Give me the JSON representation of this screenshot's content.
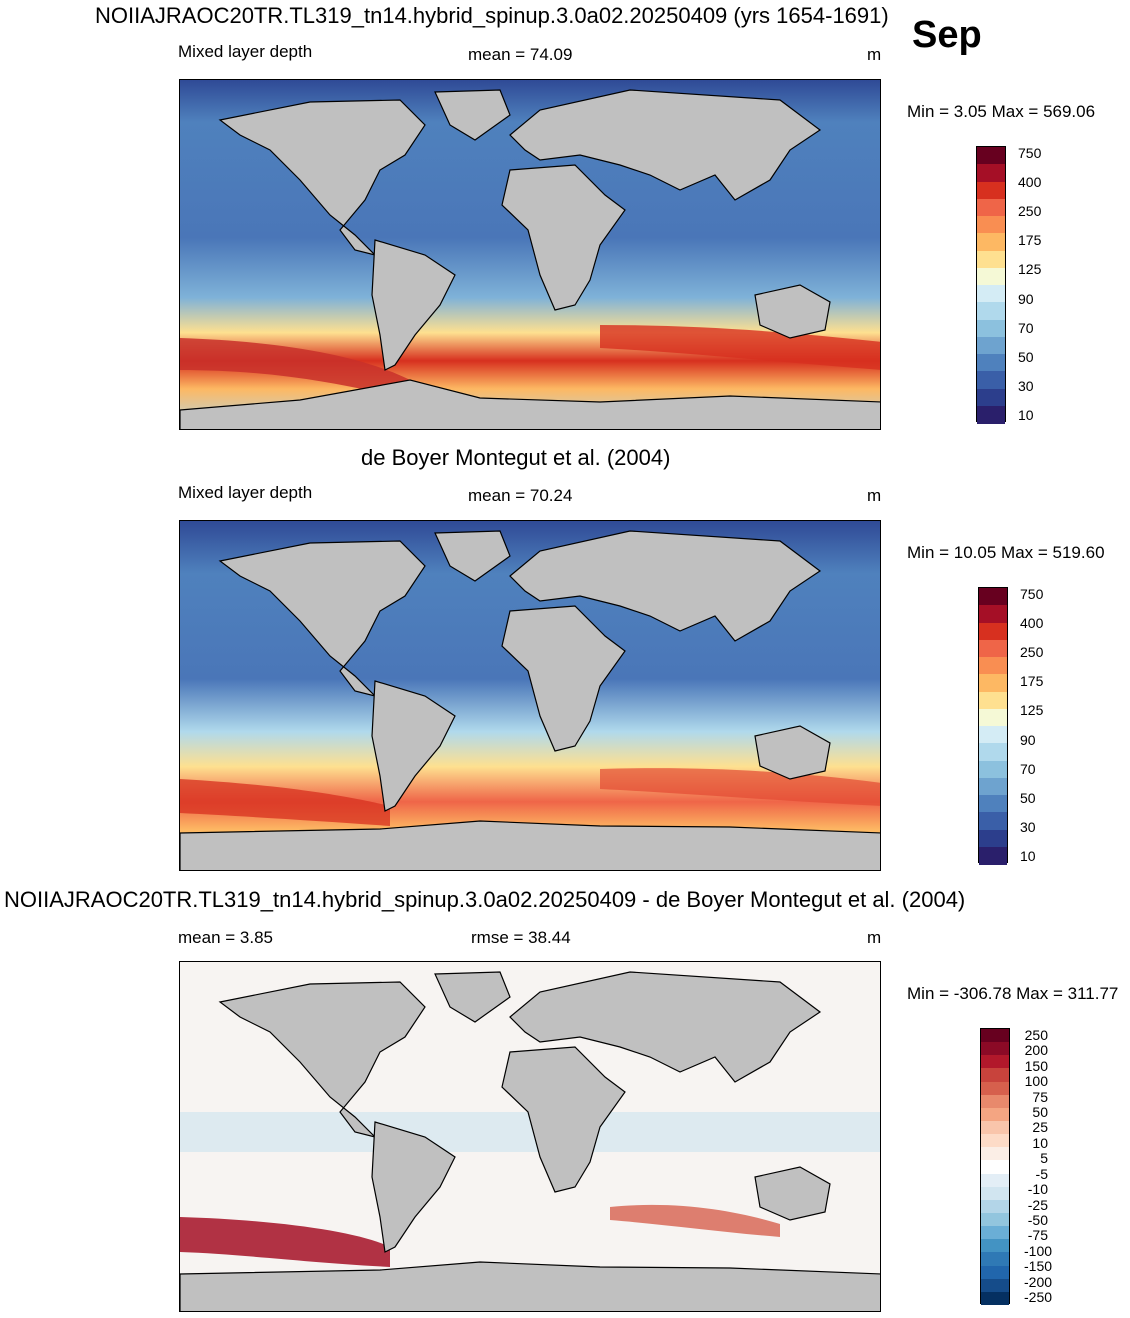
{
  "header": {
    "main_title": "NOIIAJRAOC20TR.TL319_tn14.hybrid_spinup.3.0a02.20250409 (yrs 1654-1691)",
    "month": "Sep"
  },
  "panels": [
    {
      "id": "model",
      "title": "",
      "left_label": "Mixed layer depth",
      "mean_text": "mean =  74.09",
      "units": "m",
      "minmax": "Min =   3.05 Max = 569.06",
      "colorbar_labels": [
        "750",
        "400",
        "250",
        "175",
        "125",
        "90",
        "70",
        "50",
        "30",
        "10"
      ],
      "colorbar_colors": [
        "#67001f",
        "#a50f26",
        "#d7301f",
        "#ef6548",
        "#f98e52",
        "#fdb863",
        "#fee090",
        "#f5f9d6",
        "#d4ecf5",
        "#b0d9ec",
        "#8cc1de",
        "#6ea3cf",
        "#4f81bd",
        "#3a5fa8",
        "#2c3e8c",
        "#2a1f6b"
      ]
    },
    {
      "id": "obs",
      "title": "de Boyer Montegut et al. (2004)",
      "left_label": "Mixed layer depth",
      "mean_text": "mean =  70.24",
      "units": "m",
      "minmax": "Min =  10.05 Max = 519.60",
      "colorbar_labels": [
        "750",
        "400",
        "250",
        "175",
        "125",
        "90",
        "70",
        "50",
        "30",
        "10"
      ],
      "colorbar_colors": [
        "#67001f",
        "#a50f26",
        "#d7301f",
        "#ef6548",
        "#f98e52",
        "#fdb863",
        "#fee090",
        "#f5f9d6",
        "#d4ecf5",
        "#b0d9ec",
        "#8cc1de",
        "#6ea3cf",
        "#4f81bd",
        "#3a5fa8",
        "#2c3e8c",
        "#2a1f6b"
      ]
    },
    {
      "id": "diff",
      "title": "NOIIAJRAOC20TR.TL319_tn14.hybrid_spinup.3.0a02.20250409 - de Boyer Montegut et al. (2004)",
      "left_label": "mean =   3.85",
      "mean_text": "rmse =  38.44",
      "units": "m",
      "minmax": "Min = -306.78 Max = 311.77",
      "colorbar_labels": [
        "250",
        "200",
        "150",
        "100",
        "75",
        "50",
        "25",
        "10",
        "5",
        "-5",
        "-10",
        "-25",
        "-50",
        "-75",
        "-100",
        "-150",
        "-200",
        "-250"
      ],
      "colorbar_colors": [
        "#67001f",
        "#8b0a26",
        "#b2182b",
        "#c8433c",
        "#d6604d",
        "#e8896c",
        "#f4a582",
        "#f9c5ab",
        "#fddbc7",
        "#fbeee6",
        "#ffffff",
        "#e3eef6",
        "#d1e5f0",
        "#b3d5e8",
        "#92c5de",
        "#6aaed6",
        "#4393c3",
        "#2f79b5",
        "#2166ac",
        "#154c8a",
        "#053061"
      ]
    }
  ],
  "colors": {
    "land": "#c0c0c0",
    "model_ocean": "#4a76b8",
    "obs_ocean": "#4f81bd",
    "diff_ocean": "#f7f4f2"
  }
}
